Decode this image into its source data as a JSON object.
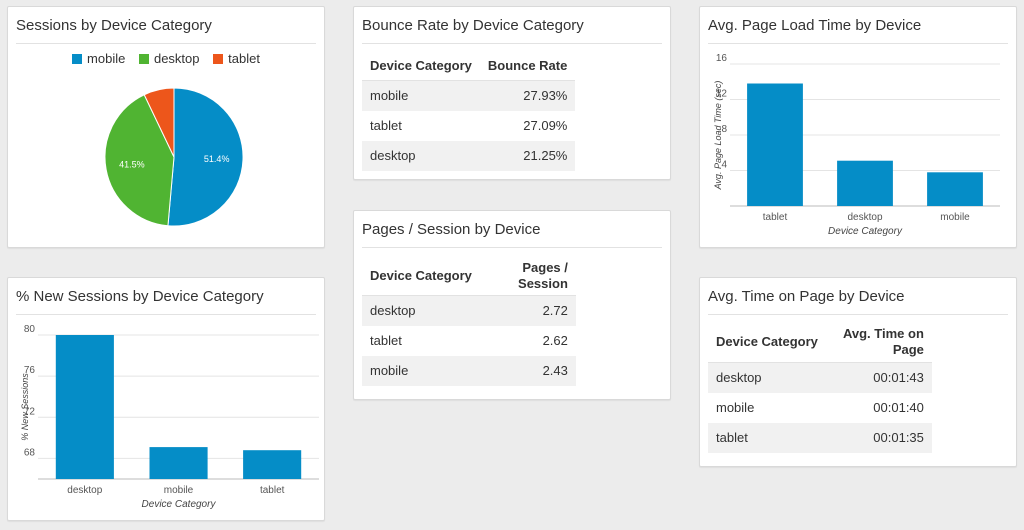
{
  "colors": {
    "blue": "#058dc7",
    "green": "#50b432",
    "orange": "#ed561b"
  },
  "sessions_widget": {
    "title": "Sessions by Device Category",
    "legend": [
      {
        "label": "mobile",
        "color": "#058dc7"
      },
      {
        "label": "desktop",
        "color": "#50b432"
      },
      {
        "label": "tablet",
        "color": "#ed561b"
      }
    ]
  },
  "bounce_widget": {
    "title": "Bounce Rate by Device Category",
    "headers": [
      "Device Category",
      "Bounce Rate"
    ],
    "rows": [
      [
        "mobile",
        "27.93%"
      ],
      [
        "tablet",
        "27.09%"
      ],
      [
        "desktop",
        "21.25%"
      ]
    ]
  },
  "pages_widget": {
    "title": "Pages / Session by Device",
    "headers": [
      "Device Category",
      "Pages / Session"
    ],
    "rows": [
      [
        "desktop",
        "2.72"
      ],
      [
        "tablet",
        "2.62"
      ],
      [
        "mobile",
        "2.43"
      ]
    ]
  },
  "load_widget": {
    "title": "Avg. Page Load Time by Device"
  },
  "new_sessions_widget": {
    "title": "% New Sessions by Device Category"
  },
  "time_widget": {
    "title": "Avg. Time on Page by Device",
    "headers": [
      "Device Category",
      "Avg. Time on Page"
    ],
    "rows": [
      [
        "desktop",
        "00:01:43"
      ],
      [
        "mobile",
        "00:01:40"
      ],
      [
        "tablet",
        "00:01:35"
      ]
    ]
  },
  "chart_data": [
    {
      "type": "pie",
      "title": "Sessions by Device Category",
      "categories": [
        "mobile",
        "desktop",
        "tablet"
      ],
      "values": [
        51.4,
        41.5,
        7.1
      ],
      "data_labels": [
        "51.4%",
        "41.5%",
        ""
      ],
      "colors": [
        "#058dc7",
        "#50b432",
        "#ed561b"
      ],
      "legend": "top-center"
    },
    {
      "type": "bar",
      "title": "Avg. Page Load Time by Device",
      "categories": [
        "tablet",
        "desktop",
        "mobile"
      ],
      "values": [
        13.8,
        5.1,
        3.8
      ],
      "xlabel": "Device Category",
      "ylabel": "Avg. Page Load Time (sec)",
      "ylim": [
        0,
        16
      ],
      "yticks": [
        4,
        8,
        12,
        16
      ],
      "grid": true
    },
    {
      "type": "bar",
      "title": "% New Sessions by Device Category",
      "categories": [
        "desktop",
        "mobile",
        "tablet"
      ],
      "values": [
        80.0,
        69.1,
        68.8
      ],
      "xlabel": "Device Category",
      "ylabel": "% New Sessions",
      "ylim": [
        66,
        80
      ],
      "yticks": [
        68,
        72,
        76,
        80
      ],
      "grid": true
    }
  ]
}
